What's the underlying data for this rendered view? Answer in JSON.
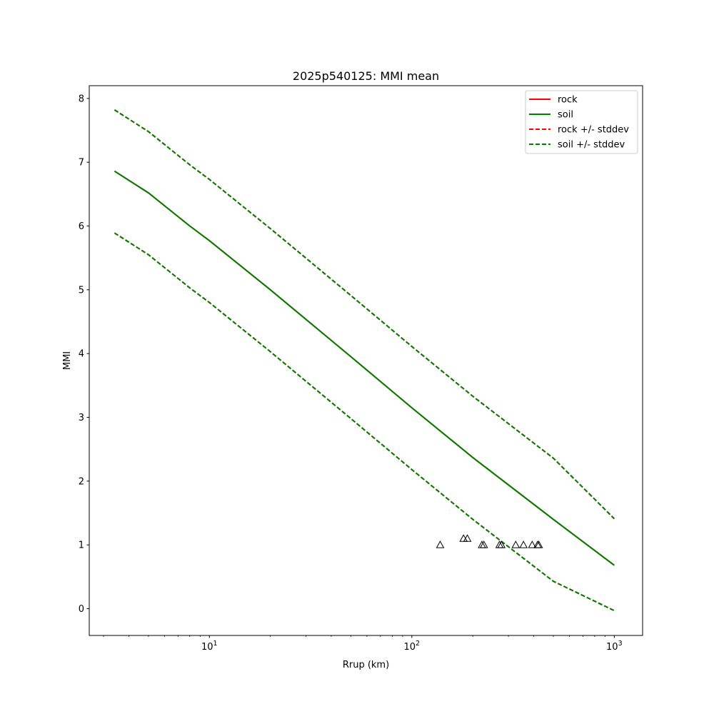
{
  "chart_data": {
    "type": "line",
    "title": "2025p540125: MMI mean",
    "xlabel": "Rrup (km)",
    "ylabel": "MMI",
    "xscale": "log",
    "xlim": [
      2.55,
      1380
    ],
    "ylim": [
      -0.42,
      8.2
    ],
    "x_ticks": [
      {
        "base": "10",
        "exp": "1",
        "value": 10
      },
      {
        "base": "10",
        "exp": "2",
        "value": 100
      },
      {
        "base": "10",
        "exp": "3",
        "value": 1000
      }
    ],
    "y_ticks": [
      "0",
      "1",
      "2",
      "3",
      "4",
      "5",
      "6",
      "7",
      "8"
    ],
    "grid": false,
    "legend_position": "top-right",
    "series": [
      {
        "name": "rock",
        "style": "solid",
        "color": "#ff0000",
        "x": [
          3.4,
          5,
          8,
          10,
          20,
          50,
          100,
          200,
          500,
          1000
        ],
        "y": [
          6.86,
          6.52,
          6.0,
          5.77,
          5.0,
          3.95,
          3.15,
          2.37,
          1.4,
          0.68
        ]
      },
      {
        "name": "soil",
        "style": "solid",
        "color": "#008000",
        "x": [
          3.4,
          5,
          8,
          10,
          20,
          50,
          100,
          200,
          500,
          1000
        ],
        "y": [
          6.86,
          6.52,
          6.0,
          5.77,
          5.0,
          3.95,
          3.15,
          2.37,
          1.4,
          0.68
        ]
      },
      {
        "name": "rock +/- stddev",
        "style": "dashed",
        "color": "#ff0000",
        "x": [
          3.4,
          5,
          8,
          10,
          20,
          50,
          100,
          200,
          500,
          1000
        ],
        "y_upper": [
          7.82,
          7.48,
          6.96,
          6.73,
          5.96,
          4.91,
          4.11,
          3.33,
          2.36,
          1.41
        ],
        "y_lower": [
          5.89,
          5.55,
          5.03,
          4.8,
          4.03,
          2.98,
          2.18,
          1.4,
          0.43,
          -0.03
        ]
      },
      {
        "name": "soil +/- stddev",
        "style": "dashed",
        "color": "#008000",
        "x": [
          3.4,
          5,
          8,
          10,
          20,
          50,
          100,
          200,
          500,
          1000
        ],
        "y_upper": [
          7.82,
          7.48,
          6.96,
          6.73,
          5.96,
          4.91,
          4.11,
          3.33,
          2.36,
          1.41
        ],
        "y_lower": [
          5.89,
          5.55,
          5.03,
          4.8,
          4.03,
          2.98,
          2.18,
          1.4,
          0.43,
          -0.03
        ]
      }
    ],
    "observations": {
      "marker": "triangle",
      "color": "#000000",
      "points": [
        {
          "x": 138,
          "y": 1.0
        },
        {
          "x": 180,
          "y": 1.1
        },
        {
          "x": 188,
          "y": 1.1
        },
        {
          "x": 222,
          "y": 1.0
        },
        {
          "x": 227,
          "y": 1.0
        },
        {
          "x": 271,
          "y": 1.0
        },
        {
          "x": 277,
          "y": 1.0
        },
        {
          "x": 326,
          "y": 1.0
        },
        {
          "x": 356,
          "y": 1.0
        },
        {
          "x": 393,
          "y": 1.0
        },
        {
          "x": 418,
          "y": 1.0
        },
        {
          "x": 424,
          "y": 1.0
        }
      ]
    }
  }
}
